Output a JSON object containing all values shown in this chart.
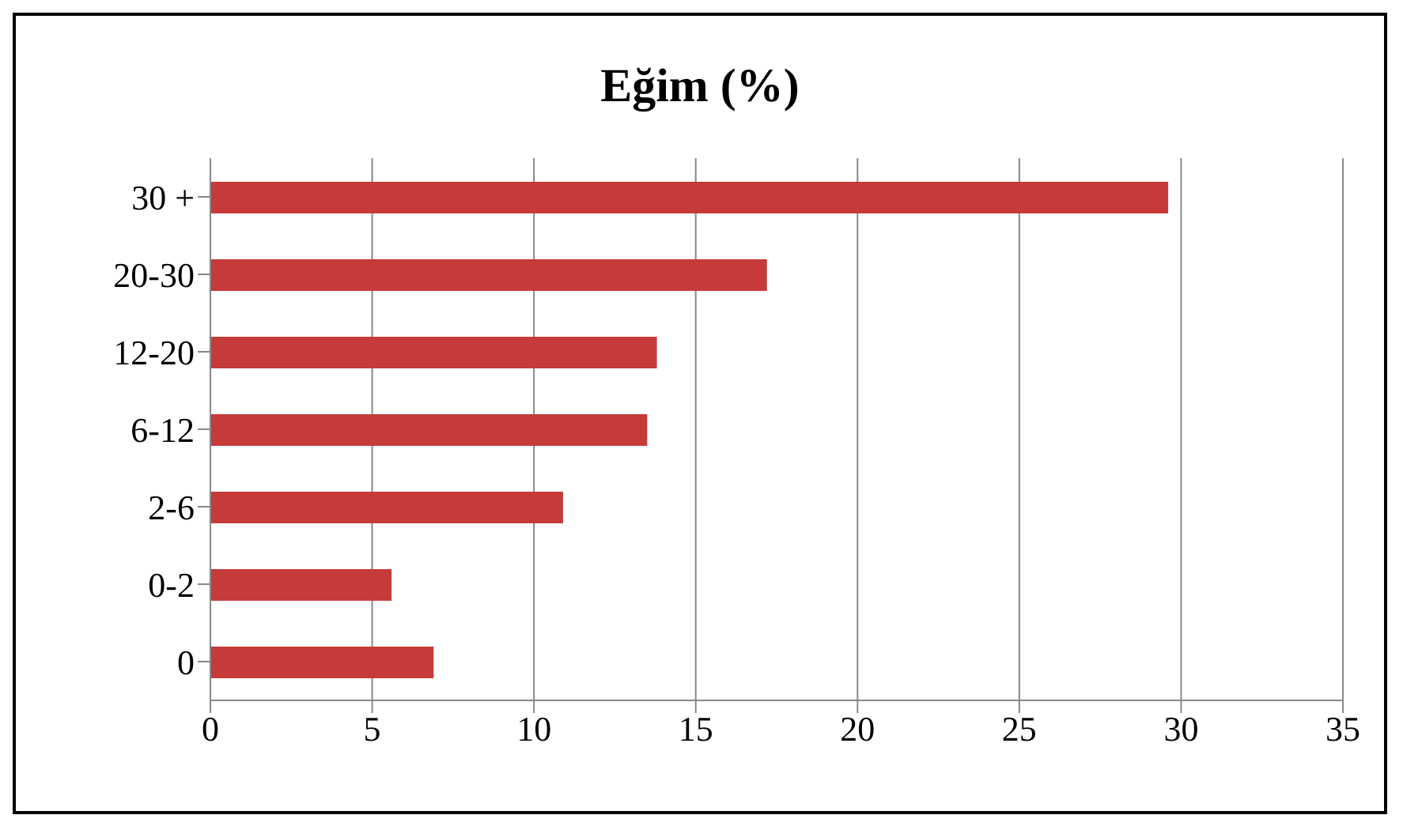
{
  "chart_data": {
    "type": "bar",
    "title": "Eğim (%)",
    "orientation": "horizontal",
    "categories": [
      "30 +",
      "20-30",
      "12-20",
      "6-12",
      "2-6",
      "0-2",
      "0"
    ],
    "values": [
      29.6,
      17.2,
      13.8,
      13.5,
      10.9,
      5.6,
      6.9
    ],
    "color": "#c63a3a",
    "xlim": [
      0,
      35
    ],
    "xticks": [
      0,
      5,
      10,
      15,
      20,
      25,
      30,
      35
    ],
    "grid": "x"
  }
}
